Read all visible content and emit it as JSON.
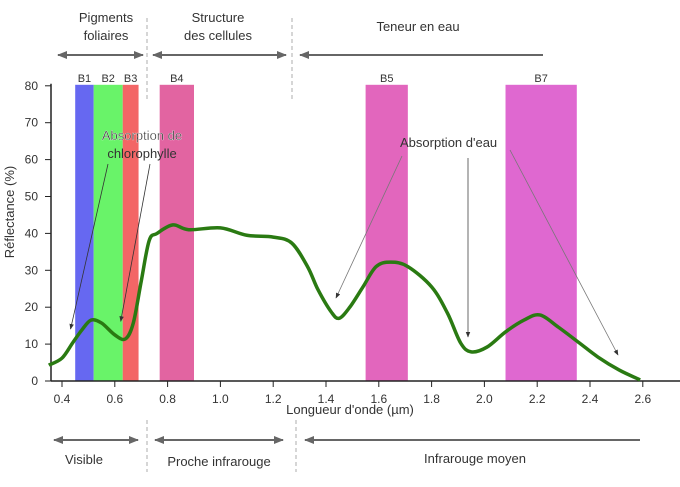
{
  "chart_data": {
    "type": "line",
    "xlabel": "Longueur d'onde (µm)",
    "ylabel": "Réflectance (%)",
    "xlim": [
      0.35,
      2.75
    ],
    "ylim": [
      0,
      80
    ],
    "x_ticks": [
      "0.4",
      "0.6",
      "0.8",
      "1.0",
      "1.2",
      "1.4",
      "1.6",
      "1.8",
      "2.0",
      "2.2",
      "2.4",
      "2.6"
    ],
    "y_ticks": [
      "0",
      "10",
      "20",
      "30",
      "40",
      "50",
      "60",
      "70",
      "80"
    ],
    "grid": false,
    "series": [
      {
        "color": "#2a7a12",
        "x": [
          0.35,
          0.4,
          0.44,
          0.475,
          0.51,
          0.55,
          0.6,
          0.64,
          0.67,
          0.7,
          0.73,
          0.76,
          0.82,
          0.88,
          1.0,
          1.1,
          1.2,
          1.27,
          1.33,
          1.37,
          1.42,
          1.45,
          1.49,
          1.54,
          1.59,
          1.645,
          1.71,
          1.8,
          1.86,
          1.91,
          1.95,
          2.01,
          2.08,
          2.15,
          2.21,
          2.28,
          2.36,
          2.43,
          2.51,
          2.59
        ],
        "y": [
          4.3,
          6.2,
          10.3,
          13.8,
          16.5,
          15.7,
          12.5,
          11.4,
          15.7,
          27,
          38,
          40,
          42.3,
          41,
          41.5,
          39.5,
          39,
          37.4,
          31,
          24.7,
          18.7,
          17,
          20,
          25.5,
          31,
          32.2,
          31,
          25.5,
          18.4,
          10.3,
          7.9,
          9.2,
          13.3,
          16.5,
          17.9,
          14.6,
          10.3,
          6.5,
          3,
          0.3
        ]
      }
    ],
    "bands": [
      {
        "label": "B1",
        "from": 0.45,
        "to": 0.52,
        "color": "#5a5cf0"
      },
      {
        "label": "B2",
        "from": 0.52,
        "to": 0.63,
        "color": "#5ef25e"
      },
      {
        "label": "B3",
        "from": 0.63,
        "to": 0.69,
        "color": "#f25a5a"
      },
      {
        "label": "B4",
        "from": 0.77,
        "to": 0.9,
        "color": "#e0589a"
      },
      {
        "label": "B5",
        "from": 1.55,
        "to": 1.71,
        "color": "#e05ab8"
      },
      {
        "label": "B7",
        "from": 2.08,
        "to": 2.35,
        "color": "#dd5ccc"
      }
    ],
    "annotations": [
      {
        "text": [
          "Absorption de",
          "chlorophylle"
        ],
        "arrows_to": [
          [
            0.44,
            13
          ],
          [
            0.63,
            14
          ]
        ]
      },
      {
        "text": [
          "Absorption d'eau"
        ],
        "arrows_to": [
          [
            1.42,
            22
          ],
          [
            1.95,
            12
          ],
          [
            2.59,
            6.5
          ]
        ]
      }
    ]
  },
  "top_sections": [
    {
      "label": [
        "Pigments",
        "foliaires"
      ],
      "arrow": "both"
    },
    {
      "label": [
        "Structure",
        "des cellules"
      ],
      "arrow": "both"
    },
    {
      "label": [
        "Teneur en eau"
      ],
      "arrow": "left"
    }
  ],
  "bottom_sections": [
    {
      "label": "Visible",
      "arrow": "both"
    },
    {
      "label": "Proche infrarouge",
      "arrow": "both"
    },
    {
      "label": "Infrarouge moyen",
      "arrow": "left"
    }
  ]
}
